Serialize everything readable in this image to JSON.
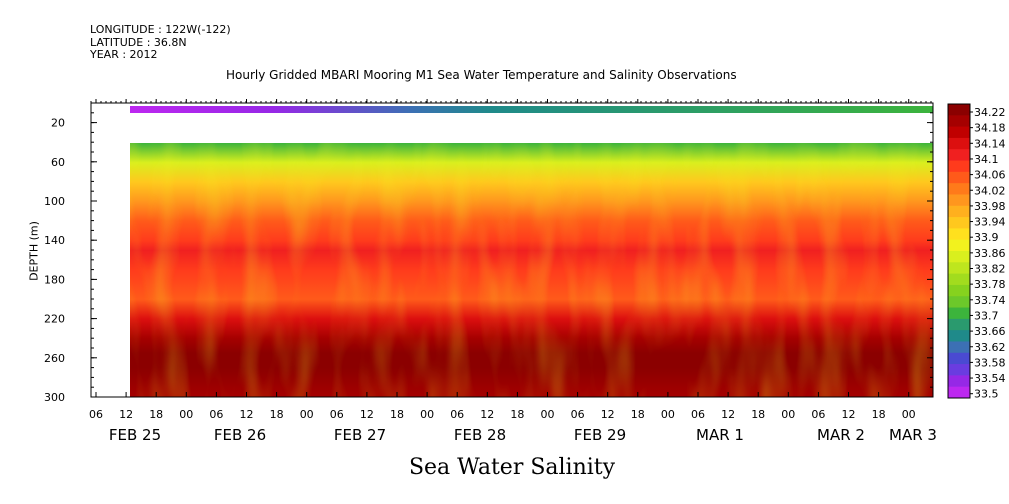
{
  "header": {
    "longitude": "LONGITUDE : 122W(-122)",
    "latitude": "LATITUDE : 36.8N",
    "year": "YEAR : 2012"
  },
  "chart_data": {
    "type": "heatmap",
    "title": "Hourly Gridded MBARI Mooring M1 Sea Water Temperature and Salinity Observations",
    "xlabel": "Sea Water Salinity",
    "ylabel": "DEPTH (m)",
    "y_ticks": [
      20,
      60,
      100,
      140,
      180,
      220,
      260,
      300
    ],
    "ylim": [
      300,
      0
    ],
    "x_hour_ticks": [
      "06",
      "12",
      "18",
      "00",
      "06",
      "12",
      "18",
      "00",
      "06",
      "12",
      "18",
      "00",
      "06",
      "12",
      "18",
      "00",
      "06",
      "12",
      "18",
      "00",
      "06",
      "12",
      "18",
      "00",
      "06",
      "12",
      "18",
      "00",
      "06",
      "12",
      "18",
      "00"
    ],
    "x_day_labels": [
      "FEB 25",
      "FEB 26",
      "FEB 27",
      "FEB 28",
      "FEB 29",
      "MAR  1",
      "MAR  2",
      "MAR  3"
    ],
    "colorbar_levels": [
      34.22,
      34.18,
      34.14,
      34.1,
      34.06,
      34.02,
      33.98,
      33.94,
      33.9,
      33.86,
      33.82,
      33.78,
      33.74,
      33.7,
      33.66,
      33.62,
      33.58,
      33.54,
      33.5
    ],
    "colorbar_colors": [
      "#8b0000",
      "#a50000",
      "#c00000",
      "#dc0f0f",
      "#f02020",
      "#ff3b1c",
      "#ff5a1a",
      "#ff7a1a",
      "#ff961e",
      "#ffb01e",
      "#ffc81e",
      "#ffe01e",
      "#f2f21e",
      "#d9ef1e",
      "#bee61e",
      "#a2dc1e",
      "#86d21e",
      "#6cc82a",
      "#3cb43c",
      "#2a9a6e",
      "#1f8a8a",
      "#3c70b4",
      "#4a4ad2",
      "#6a3ce0",
      "#9628e6",
      "#bd28f0"
    ],
    "profile": [
      {
        "depth": 10,
        "value": 33.5
      },
      {
        "depth": 40,
        "value": 33.72
      },
      {
        "depth": 60,
        "value": 33.84
      },
      {
        "depth": 80,
        "value": 33.92
      },
      {
        "depth": 100,
        "value": 33.98
      },
      {
        "depth": 120,
        "value": 34.04
      },
      {
        "depth": 140,
        "value": 34.08
      },
      {
        "depth": 150,
        "value": 34.1
      },
      {
        "depth": 170,
        "value": 34.07
      },
      {
        "depth": 200,
        "value": 34.05
      },
      {
        "depth": 220,
        "value": 34.12
      },
      {
        "depth": 240,
        "value": 34.18
      },
      {
        "depth": 255,
        "value": 34.22
      },
      {
        "depth": 270,
        "value": 34.2
      },
      {
        "depth": 300,
        "value": 34.18
      }
    ],
    "surface_band": {
      "depth": 10,
      "start_value": 33.54,
      "end_value": 33.7
    }
  }
}
